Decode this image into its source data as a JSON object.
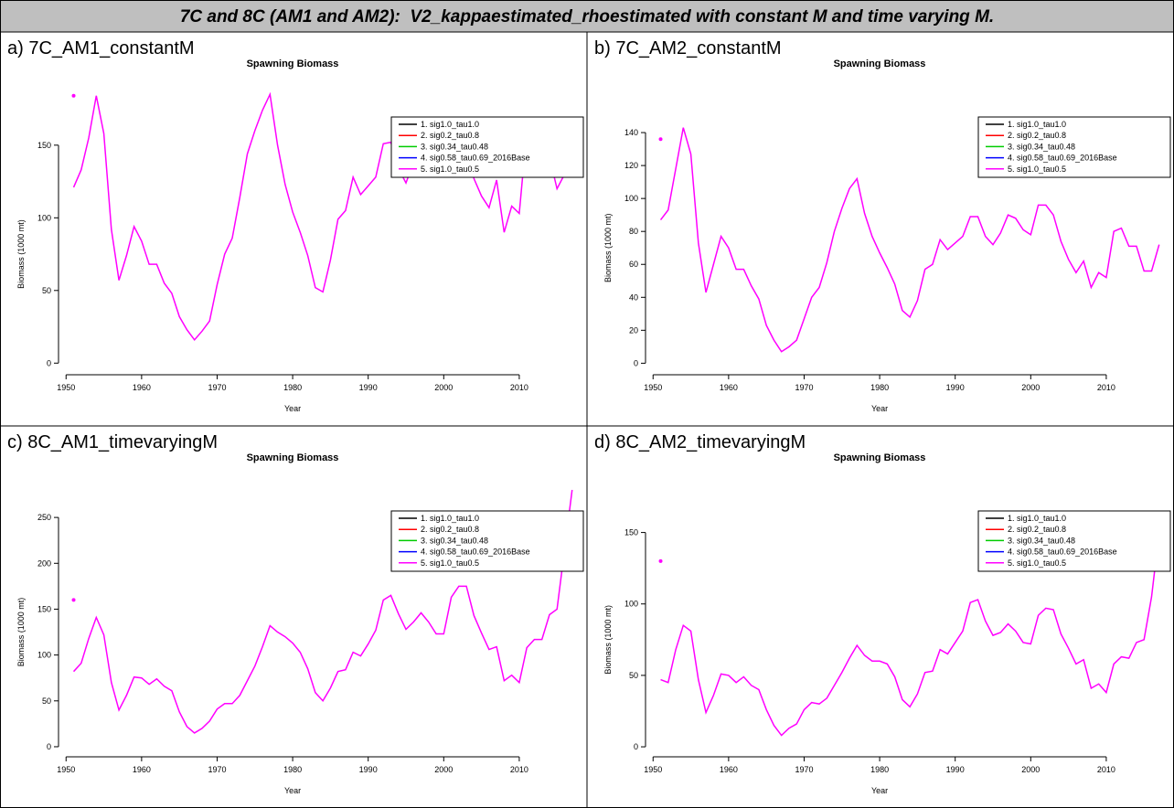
{
  "header": {
    "title": "7C and 8C (AM1 and AM2):  V2_kappaestimated_rhoestimated with constant M and time varying M."
  },
  "panels": [
    {
      "label": "a) 7C_AM1_constantM"
    },
    {
      "label": "b) 7C_AM2_constantM"
    },
    {
      "label": "c) 8C_AM1_timevaryingM"
    },
    {
      "label": "d) 8C_AM2_timevaryingM"
    }
  ],
  "chart_data": [
    {
      "type": "line",
      "title": "Spawning Biomass",
      "x_label": "Year",
      "y_label": "Biomass (1000 mt)",
      "x": [
        1951,
        1952,
        1953,
        1954,
        1955,
        1956,
        1957,
        1958,
        1959,
        1960,
        1961,
        1962,
        1963,
        1964,
        1965,
        1966,
        1967,
        1968,
        1969,
        1970,
        1971,
        1972,
        1973,
        1974,
        1975,
        1976,
        1977,
        1978,
        1979,
        1980,
        1981,
        1982,
        1983,
        1984,
        1985,
        1986,
        1987,
        1988,
        1989,
        1990,
        1991,
        1992,
        1993,
        1994,
        1995,
        1996,
        1997,
        1998,
        1999,
        2000,
        2001,
        2002,
        2003,
        2004,
        2005,
        2006,
        2007,
        2008,
        2009,
        2010,
        2011,
        2012,
        2013,
        2014,
        2015,
        2016,
        2017
      ],
      "series": [
        {
          "color": "#ff00ff",
          "values": [
            121,
            133,
            155,
            184,
            158,
            92,
            57,
            74,
            94,
            84,
            68,
            68,
            55,
            48,
            32,
            23,
            16,
            22,
            29,
            54,
            75,
            86,
            114,
            144,
            160,
            174,
            185,
            150,
            123,
            104,
            90,
            74,
            52,
            49,
            71,
            99,
            105,
            128,
            116,
            122,
            128,
            151,
            152,
            134,
            124,
            138,
            150,
            148,
            138,
            136,
            155,
            158,
            150,
            127,
            115,
            107,
            126,
            90,
            108,
            103,
            160,
            156,
            138,
            142,
            120,
            130,
            160
          ]
        }
      ],
      "points": {
        "color": "#ff00ff",
        "x": [
          1951
        ],
        "y": [
          184
        ]
      },
      "legend": {
        "position": "topright",
        "entries": [
          {
            "name": "1. sig1.0_tau1.0",
            "color": "#000000"
          },
          {
            "name": "2. sig0.2_tau0.8",
            "color": "#ff0000"
          },
          {
            "name": "3. sig0.34_tau0.48",
            "color": "#00cc00"
          },
          {
            "name": "4. sig0.58_tau0.69_2016Base",
            "color": "#0000ff"
          },
          {
            "name": "5. sig1.0_tau0.5",
            "color": "#ff00ff"
          }
        ]
      },
      "xlim": [
        1949,
        2018
      ],
      "ylim": [
        -8,
        187
      ],
      "xticks": [
        1950,
        1960,
        1970,
        1980,
        1990,
        2000,
        2010
      ],
      "yticks": [
        0,
        50,
        100,
        150
      ]
    },
    {
      "type": "line",
      "title": "Spawning Biomass",
      "x_label": "Year",
      "y_label": "Biomass (1000 mt)",
      "x": [
        1951,
        1952,
        1953,
        1954,
        1955,
        1956,
        1957,
        1958,
        1959,
        1960,
        1961,
        1962,
        1963,
        1964,
        1965,
        1966,
        1967,
        1968,
        1969,
        1970,
        1971,
        1972,
        1973,
        1974,
        1975,
        1976,
        1977,
        1978,
        1979,
        1980,
        1981,
        1982,
        1983,
        1984,
        1985,
        1986,
        1987,
        1988,
        1989,
        1990,
        1991,
        1992,
        1993,
        1994,
        1995,
        1996,
        1997,
        1998,
        1999,
        2000,
        2001,
        2002,
        2003,
        2004,
        2005,
        2006,
        2007,
        2008,
        2009,
        2010,
        2011,
        2012,
        2013,
        2014,
        2015,
        2016,
        2017
      ],
      "series": [
        {
          "color": "#ff00ff",
          "values": [
            87,
            93,
            118,
            143,
            127,
            73,
            43,
            60,
            77,
            70,
            57,
            57,
            47,
            39,
            23,
            14,
            7,
            10,
            14,
            27,
            40,
            46,
            61,
            80,
            94,
            106,
            112,
            91,
            77,
            67,
            58,
            48,
            32,
            28,
            38,
            57,
            60,
            75,
            69,
            73,
            77,
            89,
            89,
            77,
            72,
            79,
            90,
            88,
            81,
            78,
            96,
            96,
            90,
            74,
            63,
            55,
            62,
            46,
            55,
            52,
            80,
            82,
            71,
            71,
            56,
            56,
            72
          ]
        }
      ],
      "points": {
        "color": "#ff00ff",
        "x": [
          1951
        ],
        "y": [
          136
        ]
      },
      "legend": {
        "position": "topright",
        "entries": [
          {
            "name": "1. sig1.0_tau1.0",
            "color": "#000000"
          },
          {
            "name": "2. sig0.2_tau0.8",
            "color": "#ff0000"
          },
          {
            "name": "3. sig0.34_tau0.48",
            "color": "#00cc00"
          },
          {
            "name": "4. sig0.58_tau0.69_2016Base",
            "color": "#0000ff"
          },
          {
            "name": "5. sig1.0_tau0.5",
            "color": "#ff00ff"
          }
        ]
      },
      "xlim": [
        1949,
        2018
      ],
      "ylim": [
        -7,
        165
      ],
      "xticks": [
        1950,
        1960,
        1970,
        1980,
        1990,
        2000,
        2010
      ],
      "yticks": [
        0,
        20,
        40,
        60,
        80,
        100,
        120,
        140
      ]
    },
    {
      "type": "line",
      "title": "Spawning Biomass",
      "x_label": "Year",
      "y_label": "Biomass (1000 mt)",
      "x": [
        1951,
        1952,
        1953,
        1954,
        1955,
        1956,
        1957,
        1958,
        1959,
        1960,
        1961,
        1962,
        1963,
        1964,
        1965,
        1966,
        1967,
        1968,
        1969,
        1970,
        1971,
        1972,
        1973,
        1974,
        1975,
        1976,
        1977,
        1978,
        1979,
        1980,
        1981,
        1982,
        1983,
        1984,
        1985,
        1986,
        1987,
        1988,
        1989,
        1990,
        1991,
        1992,
        1993,
        1994,
        1995,
        1996,
        1997,
        1998,
        1999,
        2000,
        2001,
        2002,
        2003,
        2004,
        2005,
        2006,
        2007,
        2008,
        2009,
        2010,
        2011,
        2012,
        2013,
        2014,
        2015,
        2016,
        2017
      ],
      "series": [
        {
          "color": "#ff00ff",
          "values": [
            82,
            91,
            118,
            141,
            122,
            70,
            40,
            56,
            76,
            75,
            68,
            74,
            66,
            61,
            38,
            22,
            15,
            20,
            28,
            41,
            47,
            47,
            56,
            72,
            88,
            109,
            132,
            125,
            120,
            113,
            103,
            85,
            59,
            50,
            64,
            82,
            84,
            103,
            99,
            112,
            127,
            160,
            165,
            145,
            128,
            136,
            146,
            136,
            123,
            123,
            163,
            175,
            175,
            143,
            124,
            106,
            109,
            72,
            78,
            70,
            108,
            117,
            117,
            144,
            150,
            215,
            280
          ]
        }
      ],
      "points": {
        "color": "#ff00ff",
        "x": [
          1951
        ],
        "y": [
          160
        ]
      },
      "legend": {
        "position": "topright",
        "entries": [
          {
            "name": "1. sig1.0_tau1.0",
            "color": "#000000"
          },
          {
            "name": "2. sig0.2_tau0.8",
            "color": "#ff0000"
          },
          {
            "name": "3. sig0.34_tau0.48",
            "color": "#00cc00"
          },
          {
            "name": "4. sig0.58_tau0.69_2016Base",
            "color": "#0000ff"
          },
          {
            "name": "5. sig1.0_tau0.5",
            "color": "#ff00ff"
          }
        ]
      },
      "xlim": [
        1949,
        2018
      ],
      "ylim": [
        -11,
        285
      ],
      "xticks": [
        1950,
        1960,
        1970,
        1980,
        1990,
        2000,
        2010
      ],
      "yticks": [
        0,
        50,
        100,
        150,
        200,
        250
      ]
    },
    {
      "type": "line",
      "title": "Spawning Biomass",
      "x_label": "Year",
      "y_label": "Biomass (1000 mt)",
      "x": [
        1951,
        1952,
        1953,
        1954,
        1955,
        1956,
        1957,
        1958,
        1959,
        1960,
        1961,
        1962,
        1963,
        1964,
        1965,
        1966,
        1967,
        1968,
        1969,
        1970,
        1971,
        1972,
        1973,
        1974,
        1975,
        1976,
        1977,
        1978,
        1979,
        1980,
        1981,
        1982,
        1983,
        1984,
        1985,
        1986,
        1987,
        1988,
        1989,
        1990,
        1991,
        1992,
        1993,
        1994,
        1995,
        1996,
        1997,
        1998,
        1999,
        2000,
        2001,
        2002,
        2003,
        2004,
        2005,
        2006,
        2007,
        2008,
        2009,
        2010,
        2011,
        2012,
        2013,
        2014,
        2015,
        2016,
        2017
      ],
      "series": [
        {
          "color": "#ff00ff",
          "values": [
            47,
            45,
            68,
            85,
            81,
            47,
            24,
            36,
            51,
            50,
            45,
            49,
            43,
            40,
            26,
            15,
            8,
            13,
            16,
            26,
            31,
            30,
            34,
            43,
            52,
            62,
            71,
            64,
            60,
            60,
            58,
            49,
            33,
            28,
            37,
            52,
            53,
            68,
            65,
            73,
            81,
            101,
            103,
            88,
            78,
            80,
            86,
            81,
            73,
            72,
            92,
            97,
            96,
            79,
            69,
            58,
            61,
            41,
            44,
            38,
            58,
            63,
            62,
            73,
            75,
            105,
            150
          ]
        }
      ],
      "points": {
        "color": "#ff00ff",
        "x": [
          1951
        ],
        "y": [
          130
        ]
      },
      "legend": {
        "position": "topright",
        "entries": [
          {
            "name": "1. sig1.0_tau1.0",
            "color": "#000000"
          },
          {
            "name": "2. sig0.2_tau0.8",
            "color": "#ff0000"
          },
          {
            "name": "3. sig0.34_tau0.48",
            "color": "#00cc00"
          },
          {
            "name": "4. sig0.58_tau0.69_2016Base",
            "color": "#0000ff"
          },
          {
            "name": "5. sig1.0_tau0.5",
            "color": "#ff00ff"
          }
        ]
      },
      "xlim": [
        1949,
        2018
      ],
      "ylim": [
        -7,
        183
      ],
      "xticks": [
        1950,
        1960,
        1970,
        1980,
        1990,
        2000,
        2010
      ],
      "yticks": [
        0,
        50,
        100,
        150
      ]
    }
  ]
}
